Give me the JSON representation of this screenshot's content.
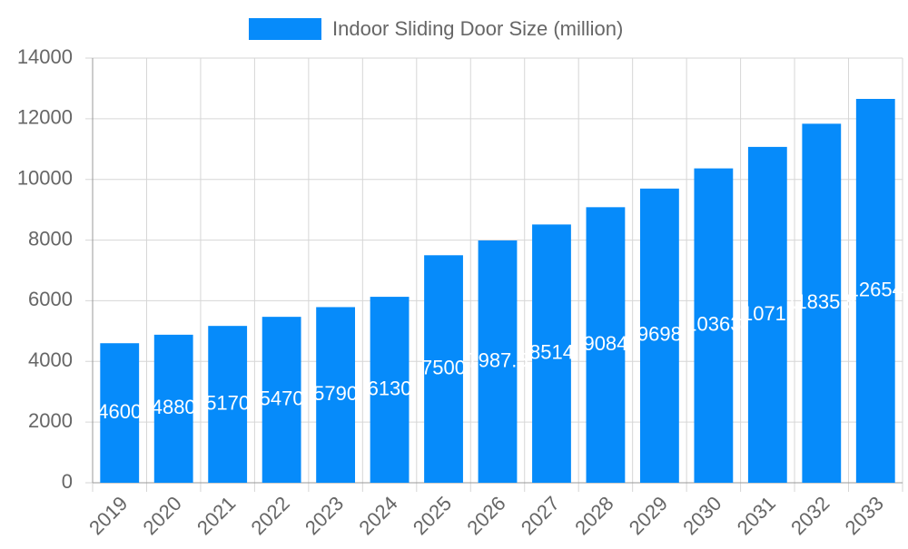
{
  "chart_data": {
    "type": "bar",
    "categories": [
      "2019",
      "2020",
      "2021",
      "2022",
      "2023",
      "2024",
      "2025",
      "2026",
      "2027",
      "2028",
      "2029",
      "2030",
      "2031",
      "2032",
      "2033"
    ],
    "series": [
      {
        "name": "Indoor Sliding Door Size (million)",
        "color": "#068bfa",
        "values": [
          4600,
          4880,
          5170,
          5470,
          5790,
          6130,
          7500,
          7987.5,
          8514,
          9084,
          9698,
          10363,
          11071.7,
          11835.5,
          12654
        ]
      }
    ],
    "ylim": [
      0,
      14000
    ],
    "yticks": [
      0,
      2000,
      4000,
      6000,
      8000,
      10000,
      12000,
      14000
    ],
    "grid": true,
    "legend": "top"
  }
}
